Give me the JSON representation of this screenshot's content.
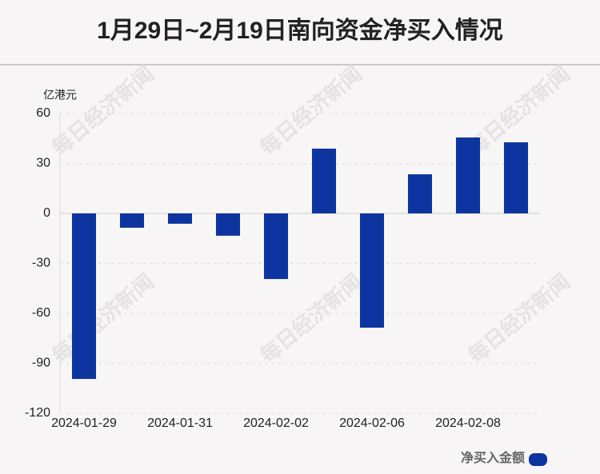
{
  "chart_data": {
    "type": "bar",
    "title": "1月29日~2月19日南向资金净买入情况",
    "y_axis_label": "亿港元",
    "watermark": "每日经济新闻",
    "categories": [
      "2024-01-29",
      null,
      "2024-01-31",
      null,
      "2024-02-02",
      null,
      "2024-02-06",
      null,
      "2024-02-08",
      null
    ],
    "series": [
      {
        "name": "净买入金额",
        "color": "#0c35a0",
        "values": [
          -99.4,
          -8.6,
          -6.2,
          -13.4,
          -39.4,
          38.9,
          -68.6,
          23.5,
          45.6,
          42.7
        ]
      }
    ],
    "ylim": [
      -120,
      60
    ],
    "yticks": [
      -120,
      -90,
      -60,
      -30,
      0,
      30,
      60
    ],
    "grid": true
  }
}
